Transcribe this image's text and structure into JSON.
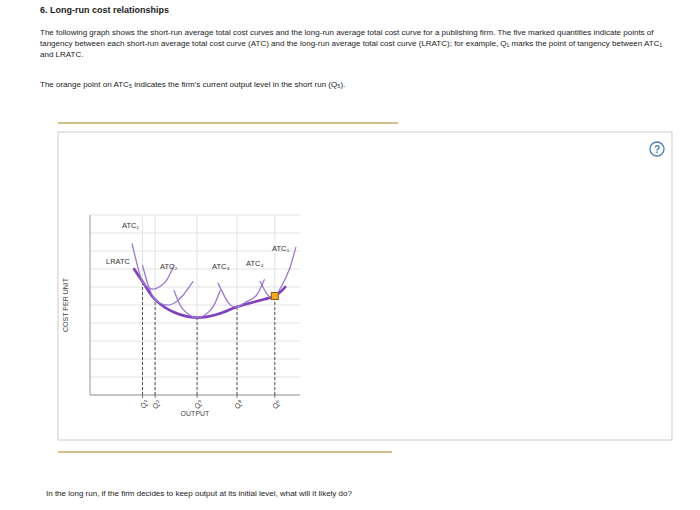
{
  "page": {
    "title": "6. Long-run cost relationships",
    "paragraph": "The following graph shows the short-run average total cost curves and the long-run average total cost curve for a publishing firm. The five marked quantities indicate points of tangency between each short-run average total cost curve (ATC) and the long-run average total cost curve (LRATC); for example, Q₁ marks the point of tangency between ATC₁ and LRATC.",
    "note": "The orange point on ATC₅ indicates the firm's current output level in the short run (Q₅).",
    "help": "?",
    "question": "In the long run, if the firm decides to keep output at its initial level, what will it likely do?"
  },
  "chart_data": {
    "type": "line",
    "x_label": "OUTPUT",
    "y_label": "COST PER UNIT",
    "xlim": [
      0,
      10
    ],
    "ylim": [
      0,
      10
    ],
    "xticks": [
      {
        "value": 2.5,
        "label": "Q₁"
      },
      {
        "value": 3.1,
        "label": "Q₂"
      },
      {
        "value": 5.1,
        "label": "Q₃"
      },
      {
        "value": 7.0,
        "label": "Q₄"
      },
      {
        "value": 8.8,
        "label": "Q₅"
      }
    ],
    "yticks": [
      0,
      1,
      2,
      3,
      4,
      5,
      6,
      7,
      8,
      9,
      10
    ],
    "grid": true,
    "tick_labels": "x",
    "series": [
      {
        "name": "LRATC",
        "color": "#7f3fbf",
        "x": [
          2.1,
          2.5,
          3.1,
          4.0,
          5.1,
          6.1,
          7.0,
          7.9,
          8.8,
          9.3
        ],
        "values": [
          7.0,
          6.3,
          5.3,
          4.6,
          4.3,
          4.5,
          4.9,
          5.2,
          5.5,
          6.0
        ]
      },
      {
        "name": "ATC₁",
        "color": "#9a79cf",
        "x": [
          2.0,
          2.3,
          2.5,
          2.8,
          3.1,
          3.6,
          4.0
        ],
        "values": [
          8.4,
          7.0,
          6.3,
          5.95,
          5.9,
          6.3,
          7.2
        ]
      },
      {
        "name": "ATC₂",
        "color": "#9a79cf",
        "x": [
          2.5,
          2.8,
          3.1,
          3.6,
          4.0,
          4.4,
          4.9
        ],
        "values": [
          7.2,
          6.0,
          5.3,
          5.0,
          5.1,
          5.5,
          6.3
        ]
      },
      {
        "name": "ATC₃",
        "color": "#9a79cf",
        "x": [
          4.0,
          4.4,
          5.1,
          5.8,
          6.2
        ],
        "values": [
          5.8,
          4.8,
          4.3,
          4.8,
          5.8
        ]
      },
      {
        "name": "ATC₄",
        "color": "#9a79cf",
        "x": [
          6.1,
          6.6,
          7.0,
          7.4,
          7.9,
          8.3
        ],
        "values": [
          6.2,
          5.1,
          4.9,
          5.15,
          5.5,
          6.4
        ]
      },
      {
        "name": "ATC₅",
        "color": "#9a79cf",
        "x": [
          8.1,
          8.5,
          8.8,
          9.1,
          9.5,
          9.8
        ],
        "values": [
          6.3,
          5.5,
          5.5,
          6.0,
          7.0,
          8.2
        ]
      },
      {
        "type": "scatter",
        "marker": "square",
        "color": "#f5a623",
        "x": [
          8.8
        ],
        "values": [
          5.5
        ]
      }
    ]
  }
}
